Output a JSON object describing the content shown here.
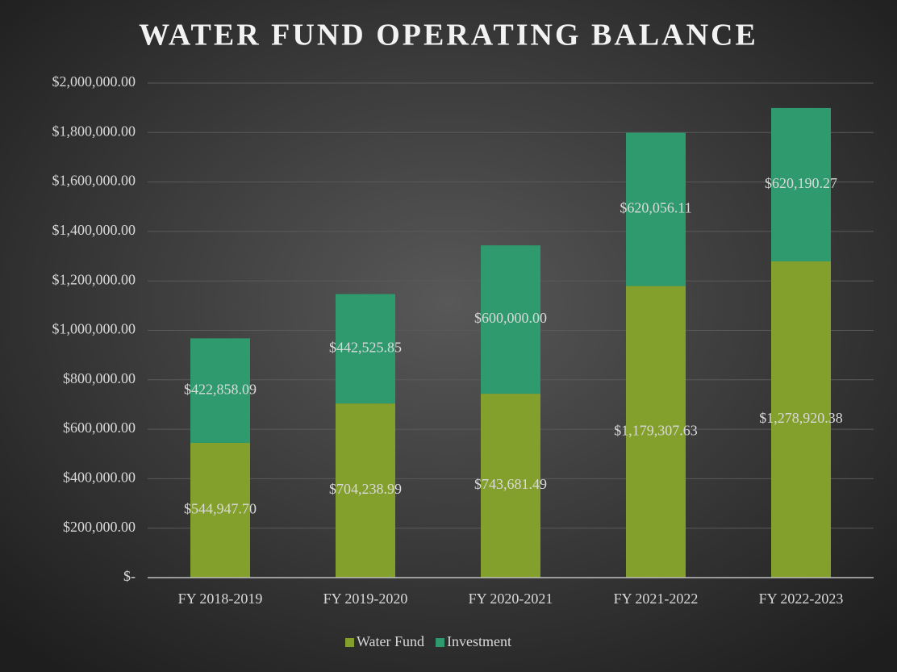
{
  "chart_data": {
    "type": "stacked_bar",
    "title": "WATER FUND OPERATING BALANCE",
    "categories": [
      "FY 2018-2019",
      "FY 2019-2020",
      "FY 2020-2021",
      "FY 2021-2022",
      "FY 2022-2023"
    ],
    "series": [
      {
        "name": "Water Fund",
        "color": "#84a02c",
        "values": [
          544947.7,
          704238.99,
          743681.49,
          1179307.63,
          1278920.38
        ],
        "value_labels": [
          "$544,947.70",
          "$704,238.99",
          "$743,681.49",
          "$1,179,307.63",
          "$1,278,920.38"
        ]
      },
      {
        "name": "Investment",
        "color": "#2f9a6e",
        "values": [
          422858.09,
          442525.85,
          600000.0,
          620056.11,
          620190.27
        ],
        "value_labels": [
          "$422,858.09",
          "$442,525.85",
          "$600,000.00",
          "$620,056.11",
          "$620,190.27"
        ]
      }
    ],
    "ylim": [
      0,
      2000000
    ],
    "yticks": [
      {
        "value": 0,
        "label": "$-"
      },
      {
        "value": 200000,
        "label": "$200,000.00"
      },
      {
        "value": 400000,
        "label": "$400,000.00"
      },
      {
        "value": 600000,
        "label": "$600,000.00"
      },
      {
        "value": 800000,
        "label": "$800,000.00"
      },
      {
        "value": 1000000,
        "label": "$1,000,000.00"
      },
      {
        "value": 1200000,
        "label": "$1,200,000.00"
      },
      {
        "value": 1400000,
        "label": "$1,400,000.00"
      },
      {
        "value": 1600000,
        "label": "$1,600,000.00"
      },
      {
        "value": 1800000,
        "label": "$1,800,000.00"
      },
      {
        "value": 2000000,
        "label": "$2,000,000.00"
      }
    ],
    "grid": true,
    "legend": "bottom"
  }
}
